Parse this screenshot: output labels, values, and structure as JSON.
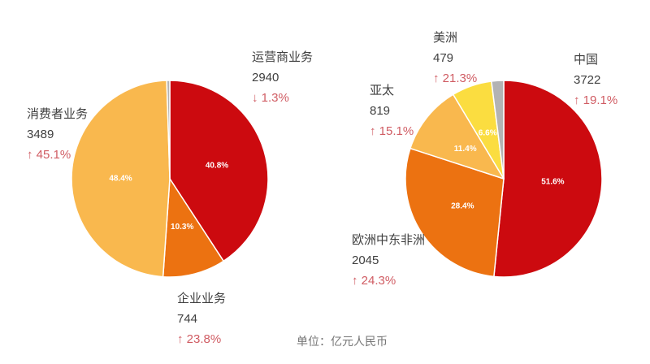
{
  "footer": {
    "unit_label": "单位：亿元人民币"
  },
  "colors": {
    "red": "#cc0a0f",
    "orange": "#ec7211",
    "amber": "#f9b84e",
    "yellow": "#fbdd40",
    "gray": "#b3b3b3",
    "change_text": "#d05c63",
    "label_text": "#3f3f3f",
    "note_text": "#757575",
    "slice_separator": "#ffffff"
  },
  "chart_data": [
    {
      "type": "pie",
      "title": "",
      "legend": "none",
      "start_angle_deg": 0,
      "direction": "clockwise",
      "slices": [
        {
          "label": "运营商业务",
          "value": 2940,
          "pct": 40.8,
          "change": "↓ 1.3%",
          "color": "#cc0a0f"
        },
        {
          "label": "企业业务",
          "value": 744,
          "pct": 10.3,
          "change": "↑ 23.8%",
          "color": "#ec7211"
        },
        {
          "label": "消费者业务",
          "value": 3489,
          "pct": 48.4,
          "change": "↑ 45.1%",
          "color": "#f9b84e"
        },
        {
          "label": "",
          "value": null,
          "pct": 0.5,
          "change": "",
          "color": "#b3b3b3"
        }
      ]
    },
    {
      "type": "pie",
      "title": "",
      "legend": "none",
      "start_angle_deg": 0,
      "direction": "clockwise",
      "slices": [
        {
          "label": "中国",
          "value": 3722,
          "pct": 51.6,
          "change": "↑ 19.1%",
          "color": "#cc0a0f"
        },
        {
          "label": "欧洲中东非洲",
          "value": 2045,
          "pct": 28.4,
          "change": "↑ 24.3%",
          "color": "#ec7211"
        },
        {
          "label": "亚太",
          "value": 819,
          "pct": 11.4,
          "change": "↑ 15.1%",
          "color": "#f9b84e"
        },
        {
          "label": "美洲",
          "value": 479,
          "pct": 6.6,
          "change": "↑ 21.3%",
          "color": "#fbdd40"
        },
        {
          "label": "",
          "value": null,
          "pct": 2.0,
          "change": "",
          "color": "#b3b3b3"
        }
      ]
    }
  ]
}
